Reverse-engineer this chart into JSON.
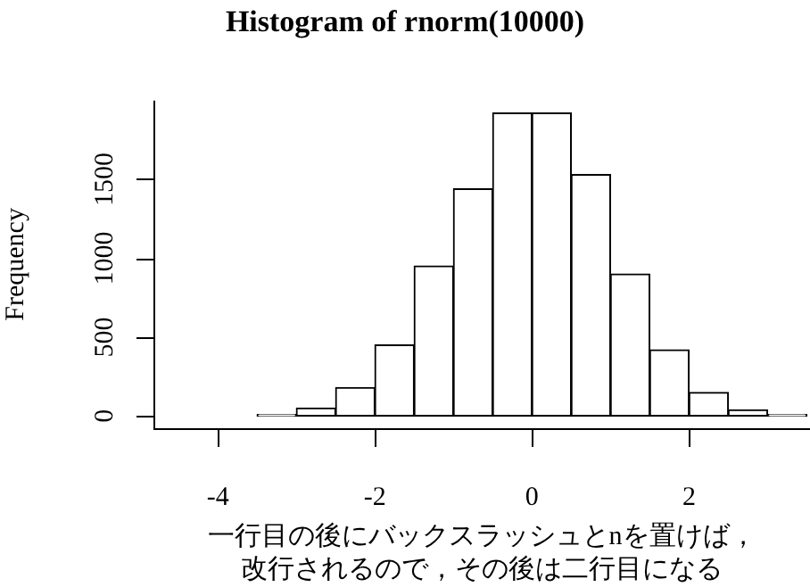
{
  "chart_data": {
    "type": "histogram",
    "title": "Histogram of rnorm(10000)",
    "xlabel": "一行目の後にバックスラッシュとnを置けば，改行されるので，その後は二行目になる",
    "ylabel": "Frequency",
    "bins": [
      -4.5,
      -4,
      -3.5,
      -3,
      -2.5,
      -2,
      -1.5,
      -1,
      -0.5,
      0,
      0.5,
      1,
      1.5,
      2,
      2.5,
      3,
      3.5
    ],
    "values": [
      0,
      0,
      10,
      50,
      180,
      450,
      950,
      1440,
      1920,
      1920,
      1530,
      900,
      420,
      150,
      40,
      10
    ],
    "color": "#ffffff",
    "xlim": [
      -4.82,
      3.54
    ],
    "xticks": [
      -4,
      -2,
      0,
      2
    ],
    "ylim": [
      -77,
      1998
    ],
    "yticks": [
      0,
      500,
      1000,
      1500
    ]
  }
}
